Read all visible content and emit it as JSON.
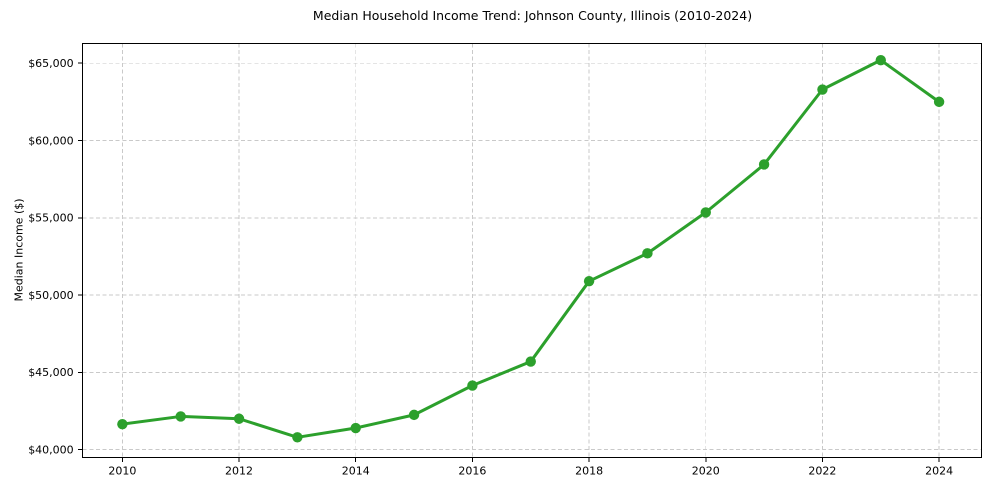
{
  "chart_data": {
    "type": "line",
    "title": "Median Household Income Trend: Johnson County, Illinois (2010-2024)",
    "xlabel": "",
    "ylabel": "Median Income ($)",
    "x": [
      2010,
      2011,
      2012,
      2013,
      2014,
      2015,
      2016,
      2017,
      2018,
      2019,
      2020,
      2021,
      2022,
      2023,
      2024
    ],
    "series": [
      {
        "name": "Median Household Income",
        "color": "#2ca02c",
        "values": [
          41650,
          42150,
          42000,
          40800,
          41400,
          42250,
          44150,
          45700,
          50900,
          52700,
          55350,
          58450,
          63300,
          65200,
          62500
        ]
      }
    ],
    "xticks": [
      2010,
      2012,
      2014,
      2016,
      2018,
      2020,
      2022,
      2024
    ],
    "yticks": [
      40000,
      45000,
      50000,
      55000,
      60000,
      65000
    ],
    "ytick_labels": [
      "$40,000",
      "$45,000",
      "$50,000",
      "$55,000",
      "$60,000",
      "$65,000"
    ],
    "ytick_prefix": "$",
    "xlim": [
      2009.32,
      2024.73
    ],
    "ylim": [
      39480,
      66290
    ],
    "grid": {
      "visible": true,
      "color": "#c9c9c9",
      "style": "dashed"
    },
    "legend_position": "none",
    "marker": "circle",
    "line_width": 3,
    "marker_size": 10.4,
    "background_color": "#ffffff",
    "axis_color": "#000000",
    "tick_label_color": "#000000"
  }
}
